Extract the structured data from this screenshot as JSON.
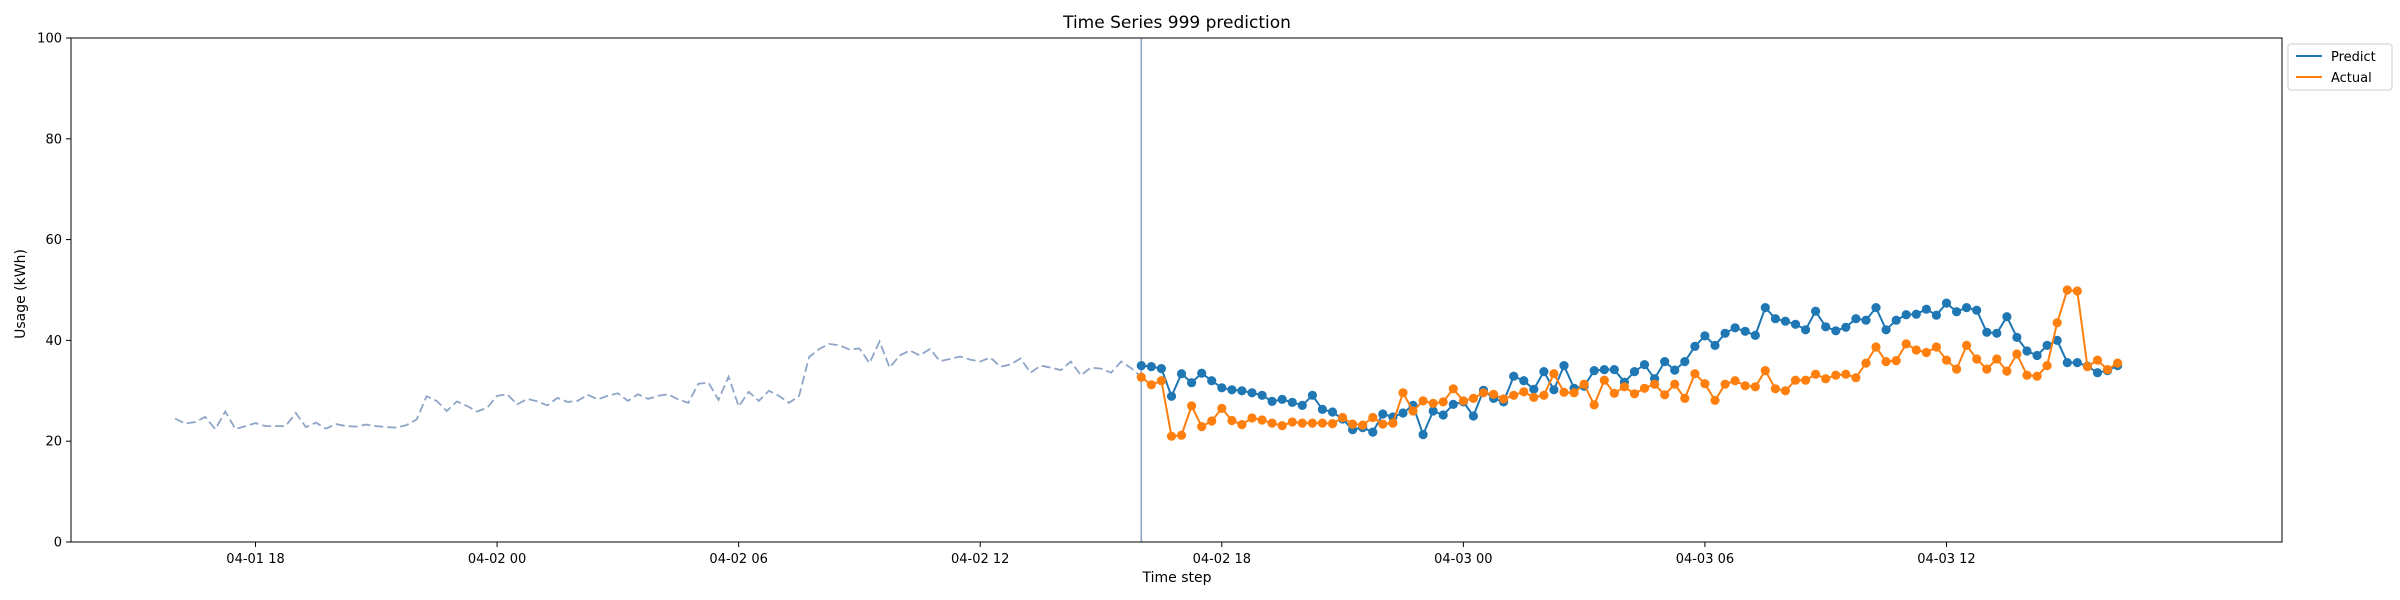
{
  "chart_data": {
    "type": "line",
    "title": "Time Series 999 prediction",
    "xlabel": "Time step",
    "ylabel": "Usage (kWh)",
    "ylim": [
      0,
      100
    ],
    "xlim": [
      "2024-04-01 13:25",
      "2024-04-03 20:20"
    ],
    "grid": false,
    "legend_position": "outside-top-right",
    "yticks": [
      0,
      20,
      40,
      60,
      80,
      100
    ],
    "xticks": [
      {
        "t": "2024-04-01 18:00",
        "label": "04-01 18"
      },
      {
        "t": "2024-04-02 00:00",
        "label": "04-02 00"
      },
      {
        "t": "2024-04-02 06:00",
        "label": "04-02 06"
      },
      {
        "t": "2024-04-02 12:00",
        "label": "04-02 12"
      },
      {
        "t": "2024-04-02 18:00",
        "label": "04-02 18"
      },
      {
        "t": "2024-04-03 00:00",
        "label": "04-03 00"
      },
      {
        "t": "2024-04-03 06:00",
        "label": "04-03 06"
      },
      {
        "t": "2024-04-03 12:00",
        "label": "04-03 12"
      }
    ],
    "forecast_start": "2024-04-02 16:00",
    "history": {
      "start": "2024-04-01 16:00",
      "step_minutes": 15,
      "color": "#8fa5c8",
      "values": [
        24.5,
        23.5,
        23.8,
        24.8,
        22.4,
        25.9,
        22.4,
        23.0,
        23.6,
        23.0,
        23.0,
        23.0,
        25.6,
        22.8,
        23.7,
        22.5,
        23.4,
        23.0,
        22.9,
        23.3,
        23.0,
        22.8,
        22.7,
        23.2,
        24.3,
        28.9,
        28.0,
        26.0,
        27.9,
        27.0,
        25.9,
        26.6,
        29.0,
        29.3,
        27.3,
        28.4,
        27.9,
        27.1,
        28.6,
        27.8,
        28.0,
        29.2,
        28.3,
        29.0,
        29.5,
        28.0,
        29.3,
        28.4,
        29.0,
        29.3,
        28.3,
        27.6,
        31.4,
        31.6,
        28.2,
        32.8,
        26.9,
        29.8,
        28.0,
        30.0,
        29.0,
        27.6,
        29.0,
        36.7,
        38.3,
        39.3,
        39.0,
        38.2,
        38.4,
        35.5,
        39.8,
        34.6,
        37.0,
        38.0,
        37.0,
        38.3,
        35.9,
        36.3,
        36.8,
        36.2,
        35.8,
        36.6,
        34.8,
        35.2,
        36.4,
        33.6,
        35.0,
        34.6,
        34.1,
        35.8,
        33.1,
        34.6,
        34.4,
        33.6,
        35.8,
        34.5,
        32.7
      ]
    },
    "series": [
      {
        "name": "Predict",
        "color": "#1f77b4",
        "start": "2024-04-02 16:00",
        "step_minutes": 15,
        "values": [
          35.0,
          34.8,
          34.4,
          28.9,
          33.4,
          31.6,
          33.5,
          32.0,
          30.6,
          30.2,
          30.0,
          29.6,
          29.1,
          27.9,
          28.3,
          27.7,
          27.1,
          29.1,
          26.3,
          25.8,
          24.4,
          22.3,
          22.7,
          21.8,
          25.4,
          24.8,
          25.6,
          27.1,
          21.3,
          26.0,
          25.2,
          27.3,
          27.8,
          25.0,
          30.1,
          28.5,
          27.8,
          32.9,
          32.0,
          30.3,
          33.8,
          30.2,
          35.0,
          30.5,
          30.9,
          34.0,
          34.2,
          34.2,
          31.7,
          33.8,
          35.2,
          32.4,
          35.8,
          34.1,
          35.8,
          38.8,
          40.9,
          39.0,
          41.4,
          42.5,
          41.8,
          41.0,
          46.5,
          44.3,
          43.8,
          43.2,
          42.1,
          45.8,
          42.7,
          41.9,
          42.6,
          44.3,
          44.0,
          46.5,
          42.1,
          44.0,
          45.1,
          45.2,
          46.2,
          45.0,
          47.4,
          45.7,
          46.5,
          46.0,
          41.6,
          41.4,
          44.7,
          40.6,
          37.9,
          37.0,
          39.0,
          40.0,
          35.6,
          35.6,
          34.9,
          33.6,
          34.0,
          35.0
        ]
      },
      {
        "name": "Actual",
        "color": "#ff7f0e",
        "start": "2024-04-02 16:00",
        "step_minutes": 15,
        "values": [
          32.7,
          31.2,
          32.0,
          21.0,
          21.2,
          27.0,
          22.9,
          24.0,
          26.5,
          24.1,
          23.3,
          24.6,
          24.2,
          23.6,
          23.1,
          23.8,
          23.6,
          23.6,
          23.6,
          23.5,
          24.7,
          23.4,
          23.2,
          24.7,
          23.4,
          23.6,
          29.6,
          26.0,
          28.0,
          27.5,
          27.8,
          30.4,
          28.0,
          28.5,
          29.6,
          29.3,
          28.4,
          29.1,
          29.8,
          28.7,
          29.1,
          33.4,
          29.7,
          29.6,
          31.3,
          27.2,
          32.1,
          29.5,
          30.8,
          29.4,
          30.5,
          31.3,
          29.2,
          31.3,
          28.5,
          33.4,
          31.4,
          28.1,
          31.3,
          32.0,
          31.0,
          30.8,
          34.0,
          30.4,
          30.0,
          32.1,
          32.1,
          33.3,
          32.4,
          33.1,
          33.3,
          32.6,
          35.5,
          38.7,
          35.8,
          36.0,
          39.3,
          38.1,
          37.6,
          38.7,
          36.1,
          34.3,
          39.0,
          36.3,
          34.3,
          36.3,
          33.9,
          37.3,
          33.1,
          32.9,
          35.0,
          43.5,
          50.0,
          49.8,
          34.8,
          36.1,
          34.2,
          35.5
        ]
      }
    ]
  }
}
